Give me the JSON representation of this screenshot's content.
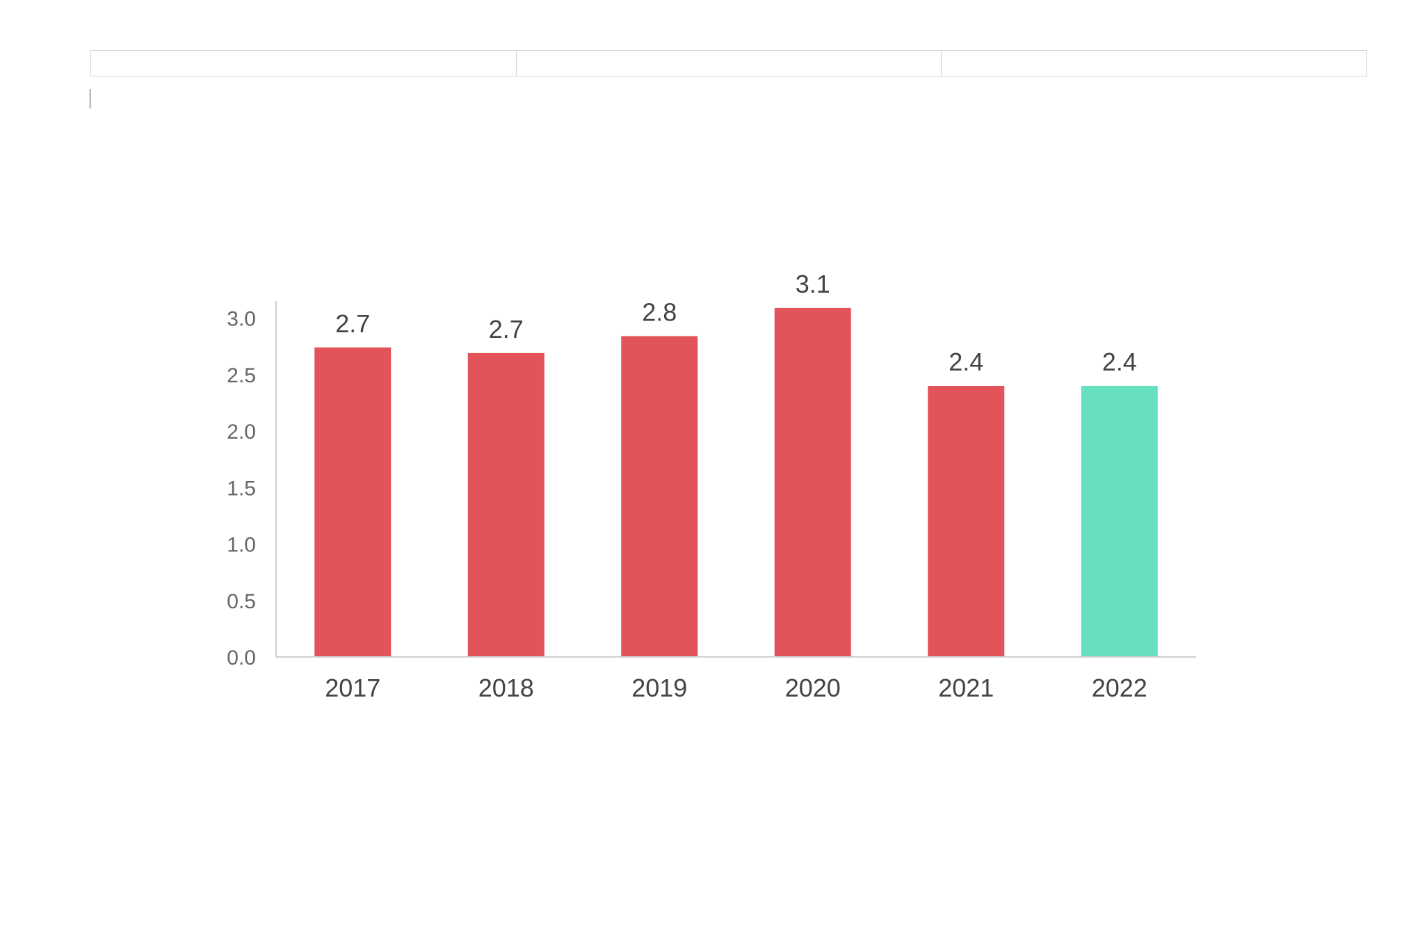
{
  "colors": {
    "bar_default": "#e2535a",
    "bar_highlight": "#67e0c0",
    "axis": "#d0d0d0",
    "tick_text": "#666666",
    "label_text": "#444444"
  },
  "chart_data": {
    "type": "bar",
    "title": "",
    "xlabel": "",
    "ylabel": "",
    "categories": [
      "2017",
      "2018",
      "2019",
      "2020",
      "2021",
      "2022"
    ],
    "values": [
      2.7,
      2.7,
      2.8,
      3.1,
      2.4,
      2.4
    ],
    "plotted_values": [
      2.74,
      2.69,
      2.84,
      3.09,
      2.4,
      2.4
    ],
    "data_labels": [
      "2.7",
      "2.7",
      "2.8",
      "3.1",
      "2.4",
      "2.4"
    ],
    "highlight_index": 5,
    "ylim": [
      0,
      3.2
    ],
    "yticks": [
      0,
      0.5,
      1.0,
      1.5,
      2.0,
      2.5,
      3.0
    ],
    "ytick_labels": [
      "0.0",
      "0.5",
      "1.0",
      "1.5",
      "2.0",
      "2.5",
      "3.0"
    ],
    "grid": false,
    "legend": "none"
  }
}
